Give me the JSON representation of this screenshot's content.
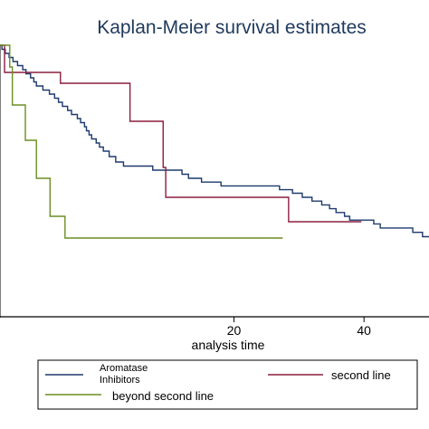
{
  "chart_data": {
    "type": "line",
    "step": true,
    "title": "Kaplan-Meier survival estimates",
    "xlabel": "analysis time",
    "ylabel": "",
    "x_ticks": [
      "20",
      "40"
    ],
    "xlim": [
      -16,
      50
    ],
    "ylim": [
      0,
      1
    ],
    "grid": false,
    "legend_placement": "bottom",
    "series": [
      {
        "name": "Aromatase Inhibitors",
        "color": "#1f3a6e",
        "points": [
          [
            -16,
            1.0
          ],
          [
            -15.7,
            0.985
          ],
          [
            -15.2,
            0.97
          ],
          [
            -14.6,
            0.955
          ],
          [
            -14.0,
            0.94
          ],
          [
            -13.3,
            0.925
          ],
          [
            -12.5,
            0.91
          ],
          [
            -12.0,
            0.895
          ],
          [
            -11.3,
            0.88
          ],
          [
            -10.8,
            0.865
          ],
          [
            -10.4,
            0.85
          ],
          [
            -9.4,
            0.835
          ],
          [
            -8.4,
            0.82
          ],
          [
            -7.6,
            0.805
          ],
          [
            -7.0,
            0.79
          ],
          [
            -6.4,
            0.775
          ],
          [
            -5.6,
            0.76
          ],
          [
            -5.0,
            0.745
          ],
          [
            -4.1,
            0.73
          ],
          [
            -3.6,
            0.715
          ],
          [
            -3.0,
            0.7
          ],
          [
            -2.7,
            0.685
          ],
          [
            -2.3,
            0.67
          ],
          [
            -1.9,
            0.655
          ],
          [
            -1.2,
            0.64
          ],
          [
            -0.7,
            0.625
          ],
          [
            -0.1,
            0.61
          ],
          [
            0.8,
            0.59
          ],
          [
            1.8,
            0.57
          ],
          [
            3.0,
            0.555
          ],
          [
            5.5,
            0.555
          ],
          [
            7.5,
            0.54
          ],
          [
            10.0,
            0.54
          ],
          [
            12.0,
            0.525
          ],
          [
            13.0,
            0.51
          ],
          [
            14.2,
            0.51
          ],
          [
            15.0,
            0.496
          ],
          [
            16.8,
            0.496
          ],
          [
            18.0,
            0.482
          ],
          [
            22.0,
            0.482
          ],
          [
            27.0,
            0.468
          ],
          [
            29.0,
            0.455
          ],
          [
            30.5,
            0.44
          ],
          [
            32.0,
            0.426
          ],
          [
            33.5,
            0.412
          ],
          [
            34.7,
            0.398
          ],
          [
            35.7,
            0.384
          ],
          [
            37.0,
            0.37
          ],
          [
            37.8,
            0.356
          ],
          [
            41.0,
            0.356
          ],
          [
            41.5,
            0.342
          ],
          [
            42.5,
            0.327
          ],
          [
            46.5,
            0.327
          ],
          [
            47.5,
            0.311
          ],
          [
            48.5,
            0.311
          ],
          [
            49.0,
            0.295
          ],
          [
            50.0,
            0.295
          ]
        ]
      },
      {
        "name": "second line",
        "color": "#8b1e3f",
        "points": [
          [
            -16,
            1.0
          ],
          [
            -15.3,
            0.9
          ],
          [
            -7.0,
            0.9
          ],
          [
            -6.7,
            0.86
          ],
          [
            3.5,
            0.86
          ],
          [
            4.0,
            0.72
          ],
          [
            8.5,
            0.72
          ],
          [
            9.1,
            0.55
          ],
          [
            9.5,
            0.44
          ],
          [
            28.0,
            0.44
          ],
          [
            28.4,
            0.35
          ],
          [
            39.6,
            0.35
          ]
        ]
      },
      {
        "name": "beyond second line",
        "color": "#6b8e23",
        "points": [
          [
            -16,
            1.0
          ],
          [
            -14.5,
            0.92
          ],
          [
            -14.1,
            0.78
          ],
          [
            -12.4,
            0.78
          ],
          [
            -12.1,
            0.65
          ],
          [
            -10.7,
            0.65
          ],
          [
            -10.4,
            0.51
          ],
          [
            -8.6,
            0.51
          ],
          [
            -8.3,
            0.37
          ],
          [
            -6.3,
            0.37
          ],
          [
            -6.0,
            0.29
          ],
          [
            27.5,
            0.29
          ]
        ]
      }
    ],
    "legend": [
      {
        "label_lines": [
          "Aromatase",
          "Inhibitors"
        ],
        "color": "#1f3a6e"
      },
      {
        "label_lines": [
          "second line"
        ],
        "color": "#8b1e3f"
      },
      {
        "label_lines": [
          "beyond second line"
        ],
        "color": "#6b8e23"
      }
    ]
  }
}
